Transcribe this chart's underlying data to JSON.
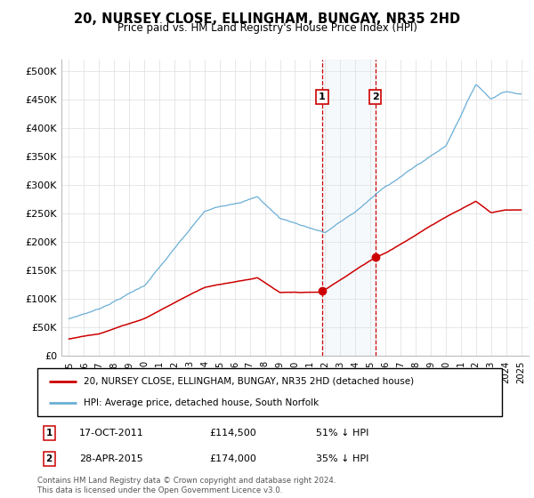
{
  "title": "20, NURSEY CLOSE, ELLINGHAM, BUNGAY, NR35 2HD",
  "subtitle": "Price paid vs. HM Land Registry's House Price Index (HPI)",
  "ylabel_ticks": [
    "£0",
    "£50K",
    "£100K",
    "£150K",
    "£200K",
    "£250K",
    "£300K",
    "£350K",
    "£400K",
    "£450K",
    "£500K"
  ],
  "ytick_values": [
    0,
    50000,
    100000,
    150000,
    200000,
    250000,
    300000,
    350000,
    400000,
    450000,
    500000
  ],
  "ylim": [
    0,
    520000
  ],
  "hpi_color": "#6aaed6",
  "price_color": "#cc0000",
  "vline_color": "#cc0000",
  "fill_color": "#dce9f5",
  "grid_color": "#dddddd",
  "transaction1_price": 114500,
  "transaction2_price": 174000,
  "transaction1_date": "17-OCT-2011",
  "transaction2_date": "28-APR-2015",
  "transaction1_label": "51% ↓ HPI",
  "transaction2_label": "35% ↓ HPI",
  "transaction1_x": 2011.8,
  "transaction2_x": 2015.33,
  "legend_line1": "20, NURSEY CLOSE, ELLINGHAM, BUNGAY, NR35 2HD (detached house)",
  "legend_line2": "HPI: Average price, detached house, South Norfolk",
  "footer": "Contains HM Land Registry data © Crown copyright and database right 2024.\nThis data is licensed under the Open Government Licence v3.0.",
  "xlim": [
    1994.5,
    2025.5
  ],
  "xtick_years": [
    1995,
    1996,
    1997,
    1998,
    1999,
    2000,
    2001,
    2002,
    2003,
    2004,
    2005,
    2006,
    2007,
    2008,
    2009,
    2010,
    2011,
    2012,
    2013,
    2014,
    2015,
    2016,
    2017,
    2018,
    2019,
    2020,
    2021,
    2022,
    2023,
    2024,
    2025
  ]
}
